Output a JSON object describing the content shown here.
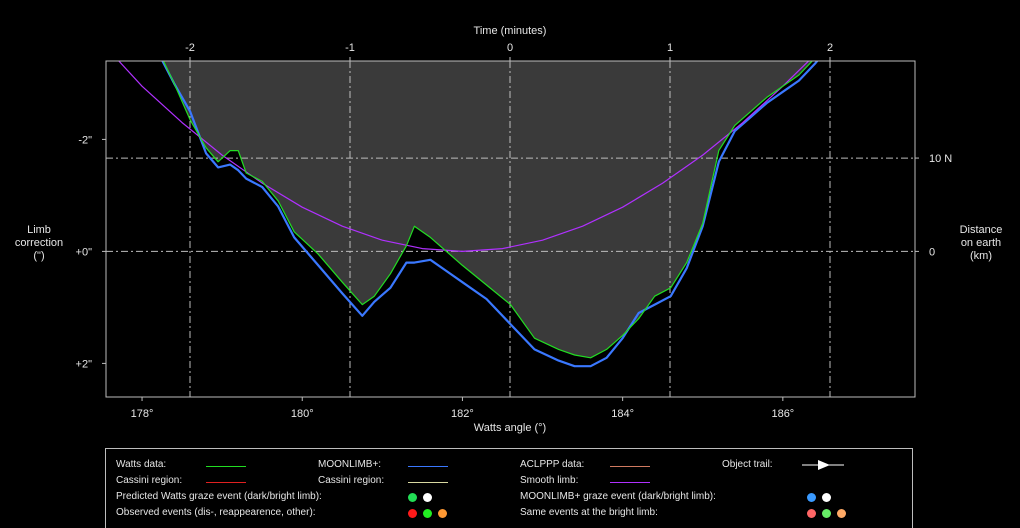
{
  "chart_data": {
    "type": "line",
    "x_axis": {
      "label": "Watts angle (°)",
      "range": [
        177.55,
        187.65
      ],
      "ticks": [
        178,
        180,
        182,
        184,
        186
      ],
      "tick_labels": [
        "178°",
        "180°",
        "182°",
        "184°",
        "186°"
      ]
    },
    "top_axis": {
      "label": "Time (minutes)",
      "ticks": [
        -2,
        -1,
        0,
        1,
        2
      ],
      "tick_labels": [
        "-2",
        "-1",
        "0",
        "1",
        "2"
      ]
    },
    "y_axis": {
      "label": "Limb correction (\")",
      "range": [
        -3.4,
        2.6
      ],
      "ticks": [
        -2,
        0,
        2
      ],
      "tick_labels": [
        "-2\"",
        "+0\"",
        "+2\""
      ],
      "inverted": true
    },
    "right_axis": {
      "label": "Distance on earth (km)",
      "ticks": [
        10,
        0
      ],
      "tick_labels": [
        "10 N",
        "0"
      ]
    },
    "grid": true,
    "series": [
      {
        "name": "Watts data:",
        "color": "#22dd22",
        "x": [
          178.2,
          178.4,
          178.6,
          178.8,
          178.95,
          179.1,
          179.2,
          179.3,
          179.5,
          179.7,
          179.9,
          180.2,
          180.5,
          180.75,
          180.9,
          181.1,
          181.3,
          181.4,
          181.6,
          181.8,
          182.0,
          182.3,
          182.6,
          182.9,
          183.2,
          183.4,
          183.6,
          183.8,
          184.0,
          184.2,
          184.4,
          184.6,
          184.8,
          185.0,
          185.2,
          185.4,
          185.6,
          185.8,
          186.0,
          186.2,
          186.4,
          186.6,
          186.75
        ],
        "y": [
          -3.6,
          -3.0,
          -2.35,
          -1.85,
          -1.6,
          -1.8,
          -1.8,
          -1.4,
          -1.25,
          -0.9,
          -0.35,
          0.05,
          0.55,
          0.95,
          0.8,
          0.4,
          -0.1,
          -0.45,
          -0.25,
          0.0,
          0.25,
          0.6,
          0.95,
          1.55,
          1.75,
          1.85,
          1.9,
          1.75,
          1.5,
          1.2,
          0.8,
          0.65,
          0.2,
          -0.5,
          -1.8,
          -2.25,
          -2.5,
          -2.75,
          -2.95,
          -3.15,
          -3.45,
          -3.75,
          -3.9
        ]
      },
      {
        "name": "MOONLIMB+:",
        "color": "#3a78ff",
        "x": [
          178.2,
          178.4,
          178.6,
          178.8,
          178.95,
          179.1,
          179.2,
          179.3,
          179.5,
          179.7,
          179.9,
          180.2,
          180.5,
          180.75,
          180.9,
          181.1,
          181.3,
          181.4,
          181.6,
          181.8,
          182.0,
          182.3,
          182.6,
          182.9,
          183.2,
          183.4,
          183.6,
          183.8,
          184.0,
          184.2,
          184.4,
          184.6,
          184.8,
          185.0,
          185.2,
          185.4,
          185.6,
          185.8,
          186.0,
          186.2,
          186.4,
          186.6,
          186.75
        ],
        "y": [
          -3.55,
          -3.0,
          -2.5,
          -1.75,
          -1.5,
          -1.55,
          -1.45,
          -1.3,
          -1.15,
          -0.8,
          -0.25,
          0.25,
          0.75,
          1.15,
          0.9,
          0.65,
          0.2,
          0.2,
          0.15,
          0.35,
          0.55,
          0.85,
          1.3,
          1.75,
          1.95,
          2.05,
          2.05,
          1.9,
          1.55,
          1.1,
          0.95,
          0.8,
          0.3,
          -0.45,
          -1.6,
          -2.15,
          -2.4,
          -2.65,
          -2.85,
          -3.05,
          -3.35,
          -3.7,
          -3.9
        ]
      },
      {
        "name": "Smooth limb:",
        "color": "#b030ff",
        "x": [
          177.55,
          178.0,
          178.5,
          179.0,
          179.5,
          180.0,
          180.5,
          181.0,
          181.5,
          182.0,
          182.5,
          183.0,
          183.5,
          184.0,
          184.5,
          185.0,
          185.5,
          186.0,
          186.5,
          186.8
        ],
        "y": [
          -3.65,
          -2.95,
          -2.3,
          -1.72,
          -1.22,
          -0.79,
          -0.45,
          -0.2,
          -0.05,
          0.0,
          -0.05,
          -0.2,
          -0.45,
          -0.79,
          -1.22,
          -1.72,
          -2.3,
          -2.95,
          -3.65,
          -4.1
        ]
      }
    ],
    "fill_color": "#3a3a3a"
  },
  "legend": {
    "watts_data": "Watts data:",
    "cassini_region_1": "Cassini region:",
    "moonlimb": "MOONLIMB+:",
    "cassini_region_2": "Cassini region:",
    "aclppp": "ACLPPP data:",
    "smooth_limb": "Smooth limb:",
    "object_trail": "Object trail:",
    "predicted_watts": "Predicted Watts graze event (dark/bright limb):",
    "moonlimb_graze": "MOONLIMB+ graze event (dark/bright limb):",
    "observed_events": "Observed events (dis-, reappearence, other):",
    "same_events": "Same events at the bright limb:"
  },
  "labels": {
    "limb_line1": "Limb",
    "limb_line2": "correction",
    "limb_line3": "(\")",
    "dist_line1": "Distance",
    "dist_line2": "on earth",
    "dist_line3": "(km)"
  }
}
